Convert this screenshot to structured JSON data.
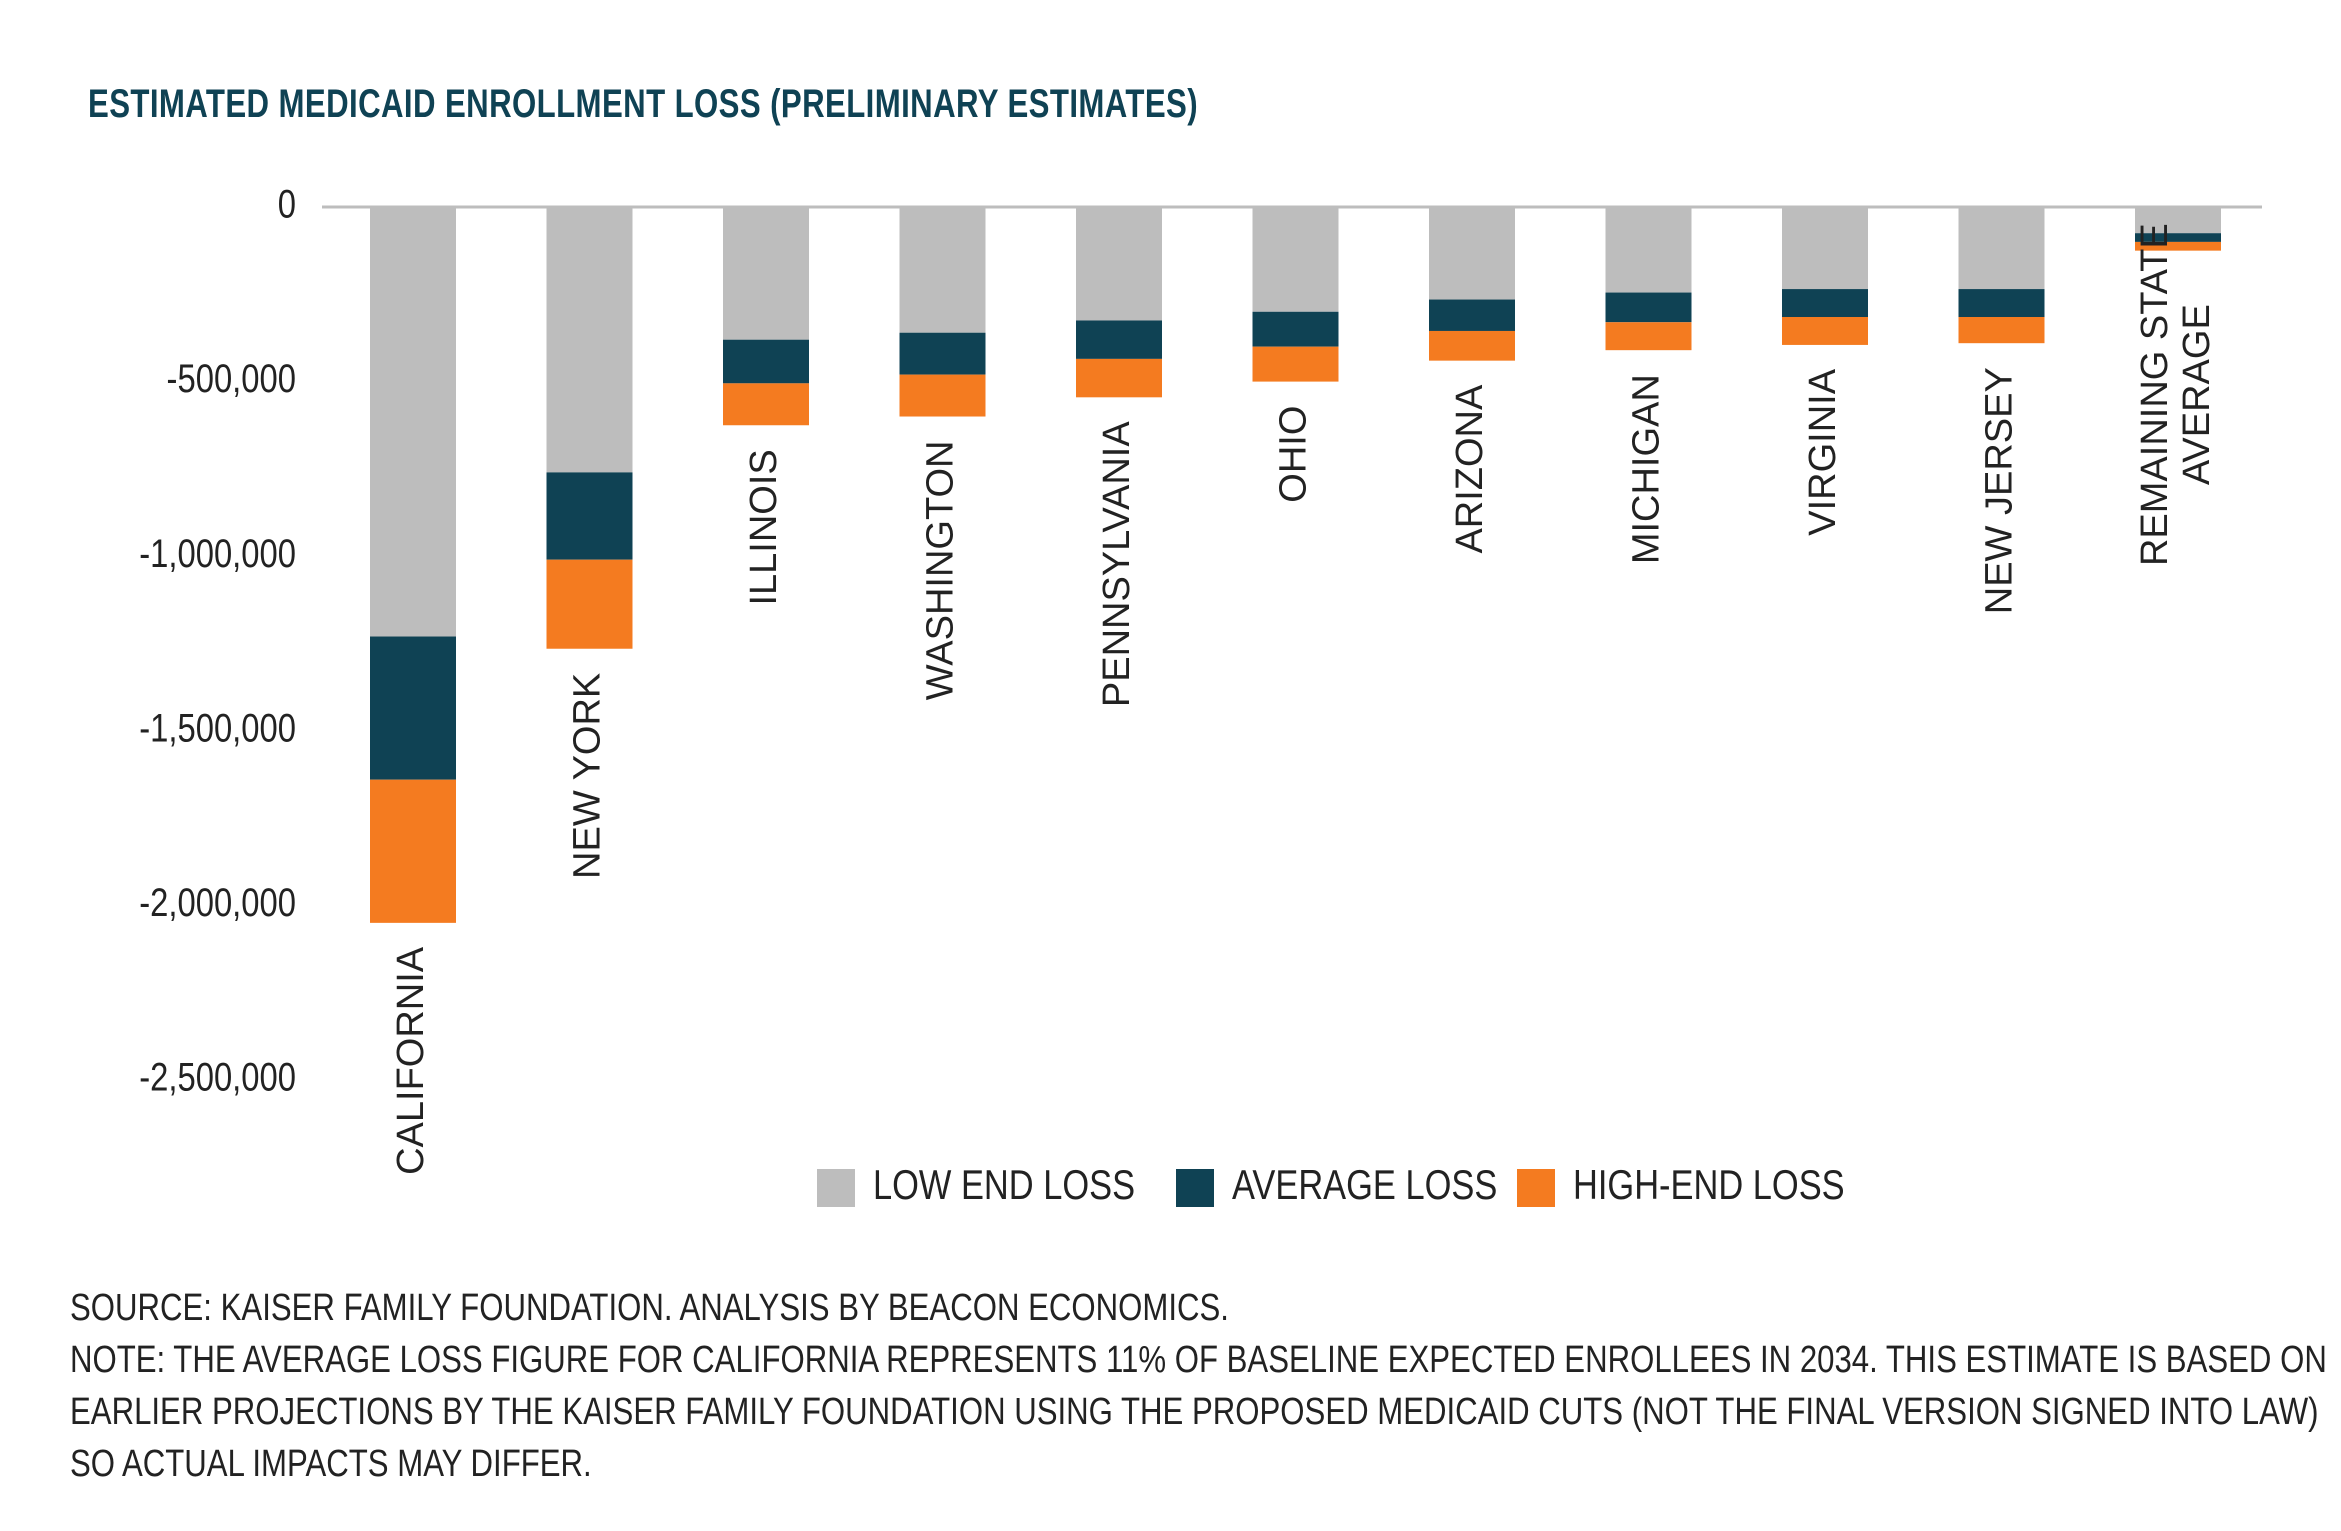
{
  "chart_data": {
    "type": "bar",
    "stacked": true,
    "title": "ESTIMATED MEDICAID ENROLLMENT LOSS (PRELIMINARY ESTIMATES)",
    "categories": [
      "CALIFORNIA",
      "NEW YORK",
      "ILLINOIS",
      "WASHINGTON",
      "PENNSYLVANIA",
      "OHIO",
      "ARIZONA",
      "MICHIGAN",
      "VIRGINIA",
      "NEW JERSEY",
      "REMAINING STATE AVERAGE"
    ],
    "series": [
      {
        "name": "LOW END LOSS",
        "color": "#bdbdbd",
        "values": [
          -1230000,
          -760000,
          -380000,
          -360000,
          -325000,
          -300000,
          -265000,
          -245000,
          -235000,
          -235000,
          -75000
        ]
      },
      {
        "name": "AVERAGE LOSS",
        "color": "#0f4254",
        "values": [
          -410000,
          -250000,
          -125000,
          -120000,
          -110000,
          -100000,
          -90000,
          -85000,
          -80000,
          -80000,
          -25000
        ]
      },
      {
        "name": "HIGH-END LOSS",
        "color": "#f47b20",
        "values": [
          -410000,
          -255000,
          -120000,
          -120000,
          -110000,
          -100000,
          -85000,
          -80000,
          -80000,
          -75000,
          -25000
        ]
      }
    ],
    "ylim": [
      -2500000,
      0
    ],
    "yticks": [
      0,
      -500000,
      -1000000,
      -1500000,
      -2000000,
      -2500000
    ],
    "ytick_labels": [
      "0",
      "-500,000",
      "-1,000,000",
      "-1,500,000",
      "-2,000,000",
      "-2,500,000"
    ],
    "legend_position": "bottom-center",
    "grid": false,
    "xlabel": "",
    "ylabel": ""
  },
  "footer": {
    "source": "SOURCE: KAISER FAMILY FOUNDATION. ANALYSIS BY BEACON ECONOMICS.",
    "note_line1": "NOTE: THE AVERAGE LOSS FIGURE FOR CALIFORNIA REPRESENTS 11% OF BASELINE EXPECTED ENROLLEES IN 2034. THIS ESTIMATE IS BASED ON",
    "note_line2": "EARLIER PROJECTIONS BY THE KAISER FAMILY FOUNDATION USING THE PROPOSED MEDICAID CUTS (NOT THE FINAL VERSION SIGNED INTO LAW)",
    "note_line3": "SO ACTUAL IMPACTS MAY DIFFER."
  }
}
